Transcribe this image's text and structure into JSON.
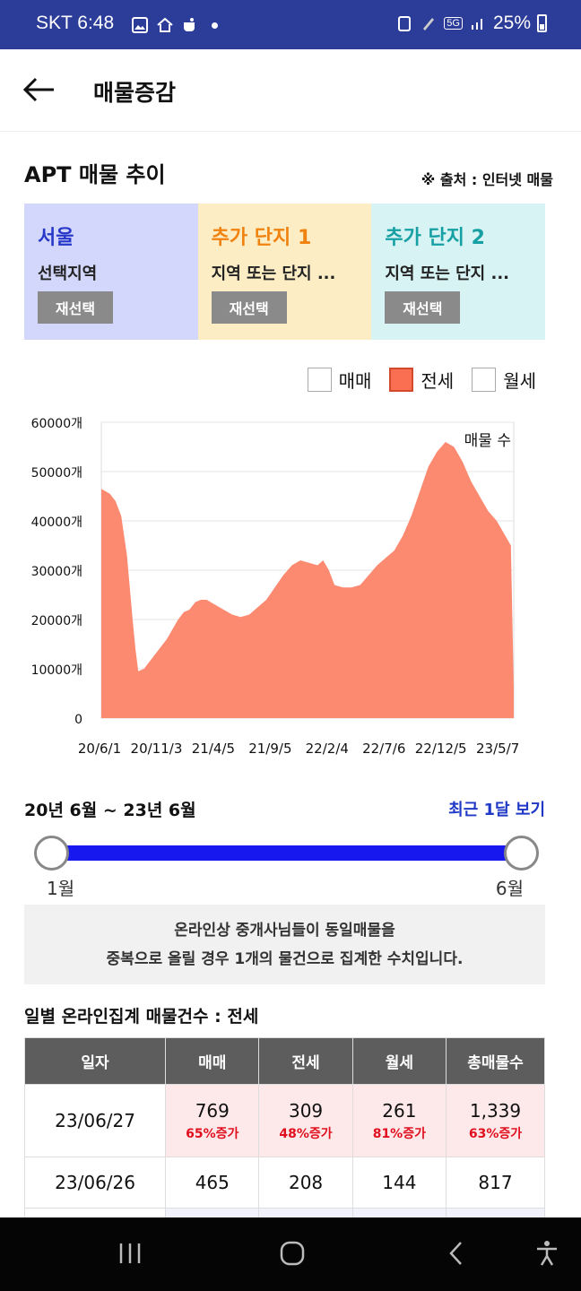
{
  "status_bar": {
    "carrier_time": "SKT 6:48",
    "network": "5G",
    "battery": "25%"
  },
  "app_bar": {
    "title": "매물증감"
  },
  "section": {
    "title": "APT 매물 추이",
    "source": "※ 출처 : 인터넷 매물"
  },
  "regions": [
    {
      "name": "서울",
      "sub": "선택지역",
      "button": "재선택",
      "bg": "#d3d7fb",
      "color": "#2838c8"
    },
    {
      "name": "추가 단지 1",
      "sub": "지역 또는 단지 ...",
      "button": "재선택",
      "bg": "#fdedc5",
      "color": "#f0820f"
    },
    {
      "name": "추가 단지 2",
      "sub": "지역 또는 단지 ...",
      "button": "재선택",
      "bg": "#d8f3f4",
      "color": "#16a0a4"
    }
  ],
  "legend": [
    {
      "label": "매매",
      "checked": false
    },
    {
      "label": "전세",
      "checked": true
    },
    {
      "label": "월세",
      "checked": false
    }
  ],
  "chart_data": {
    "type": "area",
    "series": [
      {
        "name": "전세",
        "color": "#fb8a71"
      }
    ],
    "annotation": "매물 수",
    "y_ticks": [
      "0",
      "10000개",
      "20000개",
      "30000개",
      "40000개",
      "50000개",
      "60000개"
    ],
    "ylim": [
      0,
      60000
    ],
    "x_ticks": [
      "20/6/1",
      "20/11/3",
      "21/4/5",
      "21/9/5",
      "22/2/4",
      "22/7/6",
      "22/12/5",
      "23/5/7"
    ],
    "x_tick_index": [
      0,
      20,
      40,
      60,
      80,
      100,
      120,
      140
    ],
    "values": [
      46500,
      45500,
      44000,
      41000,
      33000,
      20000,
      14000,
      9500,
      10000,
      11500,
      13000,
      14500,
      16000,
      18000,
      20000,
      21500,
      22000,
      23500,
      24000,
      24000,
      23000,
      22000,
      21000,
      20500,
      21000,
      22500,
      24000,
      26500,
      29000,
      31000,
      32000,
      31500,
      31000,
      32000,
      30000,
      27000,
      26500,
      26500,
      27000,
      29000,
      31000,
      32500,
      34000,
      37000,
      41000,
      46000,
      51000,
      54000,
      56000,
      55000,
      52000,
      48000,
      45000,
      42000,
      40000,
      37000,
      35000,
      6000
    ],
    "values_x_index": [
      0,
      3,
      5,
      7,
      9,
      11,
      12,
      13,
      15,
      17,
      19,
      21,
      23,
      25,
      27,
      29,
      31,
      33,
      35,
      37,
      40,
      43,
      46,
      49,
      52,
      55,
      58,
      61,
      64,
      67,
      70,
      73,
      76,
      78,
      80,
      82,
      85,
      88,
      91,
      94,
      97,
      100,
      103,
      106,
      109,
      112,
      115,
      118,
      121,
      124,
      127,
      130,
      133,
      136,
      139,
      142,
      144,
      145
    ]
  },
  "range": {
    "label": "20년 6월 ~ 23년 6월",
    "recent": "최근 1달 보기",
    "min": "1월",
    "max": "6월"
  },
  "notice": {
    "line1": "온라인상 중개사님들이 동일매물을",
    "line2": "중복으로 올릴 경우 1개의 물건으로 집계한 수치입니다."
  },
  "table": {
    "title": "일별 온라인집계 매물건수 : 전세",
    "headers": [
      "일자",
      "매매",
      "전세",
      "월세",
      "총매물수"
    ],
    "rows": [
      {
        "date": "23/06/27",
        "cells": [
          {
            "v": "769",
            "p": "65%증가"
          },
          {
            "v": "309",
            "p": "48%증가"
          },
          {
            "v": "261",
            "p": "81%증가"
          },
          {
            "v": "1,339",
            "p": "63%증가"
          }
        ]
      },
      {
        "date": "23/06/26",
        "cells": [
          {
            "v": "465"
          },
          {
            "v": "208"
          },
          {
            "v": "144"
          },
          {
            "v": "817"
          }
        ]
      }
    ]
  }
}
